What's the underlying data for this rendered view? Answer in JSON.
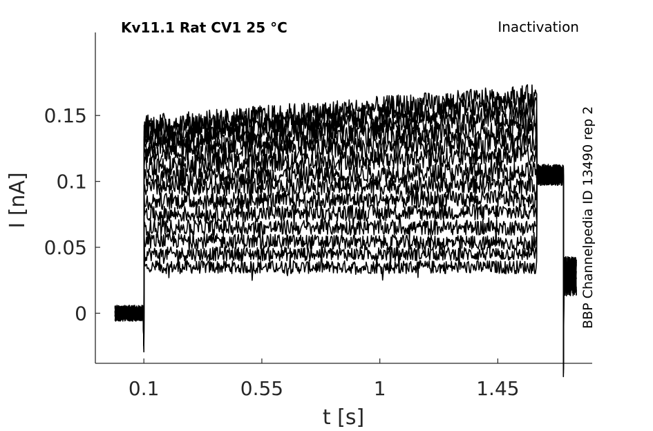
{
  "chart_data": {
    "type": "line",
    "title": "Kv11.1  Rat  CV1  25 °C",
    "annotation_top_right": "Inactivation",
    "annotation_side": "BBP Channelpedia ID 13490 rep 2",
    "xlabel": "t [s]",
    "ylabel": "I [nA]",
    "xlim": [
      -0.085,
      1.81
    ],
    "ylim": [
      -0.038,
      0.213
    ],
    "xticks": [
      0.1,
      0.55,
      1,
      1.45
    ],
    "xtick_labels": [
      "0.1",
      "0.55",
      "1",
      "1.45"
    ],
    "yticks": [
      0,
      0.05,
      0.1,
      0.15
    ],
    "ytick_labels": [
      "0",
      "0.05",
      "0.1",
      "0.15"
    ],
    "grid": false,
    "line_color": "#000000",
    "protocol": {
      "baseline_start": -0.01,
      "step_on": 0.1,
      "step_off": 1.6,
      "tail_step": 1.7,
      "trace_end": 1.75
    },
    "series_baseline": 0.0,
    "series_tail_mid": 0.105,
    "series_tail_end": 0.028,
    "series": [
      {
        "values": {
          "early": 0.035,
          "late": 0.035
        }
      },
      {
        "values": {
          "early": 0.045,
          "late": 0.045
        }
      },
      {
        "values": {
          "early": 0.055,
          "late": 0.053
        }
      },
      {
        "values": {
          "early": 0.065,
          "late": 0.065
        }
      },
      {
        "values": {
          "early": 0.075,
          "late": 0.077
        }
      },
      {
        "values": {
          "early": 0.085,
          "late": 0.087
        }
      },
      {
        "values": {
          "early": 0.095,
          "late": 0.098
        }
      },
      {
        "values": {
          "early": 0.103,
          "late": 0.108
        }
      },
      {
        "values": {
          "early": 0.112,
          "late": 0.12
        }
      },
      {
        "values": {
          "early": 0.12,
          "late": 0.13
        }
      },
      {
        "values": {
          "early": 0.127,
          "late": 0.14
        }
      },
      {
        "values": {
          "early": 0.133,
          "late": 0.15
        }
      },
      {
        "values": {
          "early": 0.138,
          "late": 0.158
        }
      },
      {
        "values": {
          "early": 0.142,
          "late": 0.165
        }
      }
    ]
  }
}
